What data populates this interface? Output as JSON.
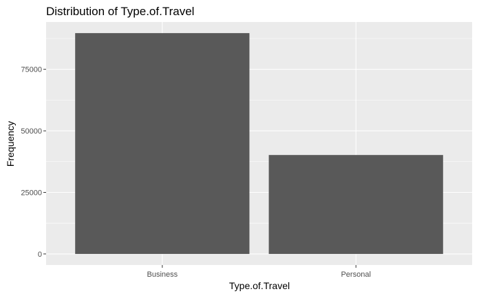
{
  "chart_data": {
    "type": "bar",
    "title": "Distribution of Type.of.Travel",
    "xlabel": "Type.of.Travel",
    "ylabel": "Frequency",
    "categories": [
      "Business",
      "Personal"
    ],
    "values": [
      89693,
      40187
    ],
    "ylim": [
      -4500,
      94200
    ],
    "yticks": [
      0,
      25000,
      50000,
      75000
    ],
    "ytick_labels": [
      "0",
      "25000",
      "50000",
      "75000"
    ],
    "grid": true,
    "legend": "none",
    "colors": {
      "panel": "#ebebeb",
      "grid_major": "#ffffff",
      "bar": "#595959",
      "tick_text": "#4d4d4d",
      "tick_mark": "#333333"
    }
  }
}
